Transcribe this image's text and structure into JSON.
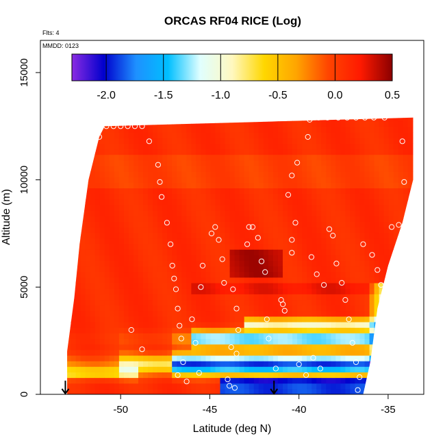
{
  "chart_data": {
    "type": "heatmap",
    "title": "ORCAS RF04 RICE (Log)",
    "xlabel": "Latitude (deg N)",
    "ylabel": "Altitude (m)",
    "xlim": [
      -54.5,
      -33.0
    ],
    "ylim": [
      0,
      16500
    ],
    "x_ticks": [
      -50,
      -45,
      -40,
      -35
    ],
    "x_tick_labels": [
      "-50",
      "-45",
      "-40",
      "-35"
    ],
    "y_ticks": [
      0,
      5000,
      10000,
      15000
    ],
    "y_tick_labels": [
      "0",
      "5000",
      "10000",
      "15000"
    ],
    "flights_note": "Flts: 4",
    "date_note": "MMDD: 0123",
    "colorbar": {
      "min": -2.3,
      "max": 0.5,
      "ticks": [
        -2.0,
        -1.5,
        -1.0,
        -0.5,
        0.0,
        0.5
      ],
      "tick_labels": [
        "-2.0",
        "-1.5",
        "-1.0",
        "-0.5",
        "0.0",
        "0.5"
      ],
      "stops": [
        "#8a2be2",
        "#0000cd",
        "#1e90ff",
        "#00bfff",
        "#e0ffff",
        "#fff8c0",
        "#ffd700",
        "#ffa500",
        "#ff4500",
        "#ff1a00",
        "#8b0000"
      ]
    },
    "field_description": "Log RICE field versus latitude and altitude; mostly 0.0 to 0.2 (red) aloft, with negative values (blue) in layers between 500 and 3500 m",
    "coverage": {
      "lat_south": [
        -53.0,
        -53.0,
        -52.6,
        -52.3,
        -51.8,
        -51.2,
        -50.9
      ],
      "alt_south": [
        0,
        2000,
        4500,
        7000,
        10000,
        12000,
        12500
      ],
      "lat_north": [
        -36.4,
        -36.0,
        -35.6,
        -35.0,
        -34.2,
        -33.6,
        -33.6
      ],
      "alt_north": [
        0,
        1500,
        4000,
        6000,
        8000,
        10000,
        12900
      ]
    },
    "flight_track_points": [
      {
        "lat": -50.8,
        "alt": 12500
      },
      {
        "lat": -50.4,
        "alt": 12500
      },
      {
        "lat": -50.0,
        "alt": 12500
      },
      {
        "lat": -49.6,
        "alt": 12500
      },
      {
        "lat": -49.2,
        "alt": 12500
      },
      {
        "lat": -48.8,
        "alt": 12500
      },
      {
        "lat": -51.2,
        "alt": 12000
      },
      {
        "lat": -48.4,
        "alt": 11800
      },
      {
        "lat": -47.9,
        "alt": 10700
      },
      {
        "lat": -47.8,
        "alt": 9900
      },
      {
        "lat": -47.7,
        "alt": 9200
      },
      {
        "lat": -47.4,
        "alt": 8000
      },
      {
        "lat": -47.2,
        "alt": 7000
      },
      {
        "lat": -47.1,
        "alt": 6000
      },
      {
        "lat": -47.0,
        "alt": 5400
      },
      {
        "lat": -46.9,
        "alt": 4900
      },
      {
        "lat": -46.8,
        "alt": 4000
      },
      {
        "lat": -46.7,
        "alt": 3200
      },
      {
        "lat": -46.6,
        "alt": 2600
      },
      {
        "lat": -46.5,
        "alt": 1500
      },
      {
        "lat": -46.8,
        "alt": 900
      },
      {
        "lat": -46.3,
        "alt": 600
      },
      {
        "lat": -46.0,
        "alt": 3500
      },
      {
        "lat": -45.8,
        "alt": 2400
      },
      {
        "lat": -45.6,
        "alt": 1000
      },
      {
        "lat": -45.5,
        "alt": 5000
      },
      {
        "lat": -45.4,
        "alt": 6000
      },
      {
        "lat": -44.9,
        "alt": 7500
      },
      {
        "lat": -44.7,
        "alt": 7800
      },
      {
        "lat": -44.5,
        "alt": 7200
      },
      {
        "lat": -44.3,
        "alt": 6300
      },
      {
        "lat": -44.2,
        "alt": 5200
      },
      {
        "lat": -43.7,
        "alt": 4900
      },
      {
        "lat": -43.5,
        "alt": 4000
      },
      {
        "lat": -43.4,
        "alt": 3000
      },
      {
        "lat": -43.8,
        "alt": 2200
      },
      {
        "lat": -43.5,
        "alt": 1900
      },
      {
        "lat": -44.0,
        "alt": 700
      },
      {
        "lat": -43.9,
        "alt": 400
      },
      {
        "lat": -43.6,
        "alt": 300
      },
      {
        "lat": -42.9,
        "alt": 7000
      },
      {
        "lat": -42.8,
        "alt": 7800
      },
      {
        "lat": -42.6,
        "alt": 7800
      },
      {
        "lat": -42.3,
        "alt": 7300
      },
      {
        "lat": -42.1,
        "alt": 6200
      },
      {
        "lat": -41.9,
        "alt": 5700
      },
      {
        "lat": -41.8,
        "alt": 3500
      },
      {
        "lat": -41.7,
        "alt": 2600
      },
      {
        "lat": -41.3,
        "alt": 1200
      },
      {
        "lat": -41.0,
        "alt": 4400
      },
      {
        "lat": -40.9,
        "alt": 4200
      },
      {
        "lat": -40.8,
        "alt": 3900
      },
      {
        "lat": -40.4,
        "alt": 7200
      },
      {
        "lat": -40.2,
        "alt": 8000
      },
      {
        "lat": -40.4,
        "alt": 6600
      },
      {
        "lat": -40.6,
        "alt": 9300
      },
      {
        "lat": -40.4,
        "alt": 10200
      },
      {
        "lat": -40.1,
        "alt": 10800
      },
      {
        "lat": -39.5,
        "alt": 12000
      },
      {
        "lat": -39.4,
        "alt": 12800
      },
      {
        "lat": -38.9,
        "alt": 12900
      },
      {
        "lat": -38.4,
        "alt": 12900
      },
      {
        "lat": -37.8,
        "alt": 12900
      },
      {
        "lat": -37.3,
        "alt": 12900
      },
      {
        "lat": -36.8,
        "alt": 12900
      },
      {
        "lat": -36.3,
        "alt": 12900
      },
      {
        "lat": -35.8,
        "alt": 12900
      },
      {
        "lat": -35.2,
        "alt": 12900
      },
      {
        "lat": -39.3,
        "alt": 6400
      },
      {
        "lat": -39.0,
        "alt": 5600
      },
      {
        "lat": -38.6,
        "alt": 5100
      },
      {
        "lat": -38.3,
        "alt": 7700
      },
      {
        "lat": -38.1,
        "alt": 7400
      },
      {
        "lat": -37.9,
        "alt": 6100
      },
      {
        "lat": -37.6,
        "alt": 5200
      },
      {
        "lat": -37.4,
        "alt": 4400
      },
      {
        "lat": -37.2,
        "alt": 3500
      },
      {
        "lat": -37.0,
        "alt": 2400
      },
      {
        "lat": -36.8,
        "alt": 1500
      },
      {
        "lat": -36.6,
        "alt": 800
      },
      {
        "lat": -36.7,
        "alt": 200
      },
      {
        "lat": -40.0,
        "alt": 1400
      },
      {
        "lat": -39.6,
        "alt": 900
      },
      {
        "lat": -39.2,
        "alt": 1700
      },
      {
        "lat": -38.8,
        "alt": 1200
      },
      {
        "lat": -36.4,
        "alt": 7000
      },
      {
        "lat": -35.9,
        "alt": 6500
      },
      {
        "lat": -35.6,
        "alt": 5800
      },
      {
        "lat": -35.4,
        "alt": 5100
      },
      {
        "lat": -34.8,
        "alt": 7800
      },
      {
        "lat": -34.4,
        "alt": 7900
      },
      {
        "lat": -34.1,
        "alt": 9900
      },
      {
        "lat": -34.2,
        "alt": 11800
      },
      {
        "lat": -49.4,
        "alt": 3000
      },
      {
        "lat": -48.8,
        "alt": 2100
      }
    ],
    "takeoff_markers": [
      {
        "lat": -53.1,
        "alt": 0
      },
      {
        "lat": -41.4,
        "alt": 0
      }
    ]
  }
}
